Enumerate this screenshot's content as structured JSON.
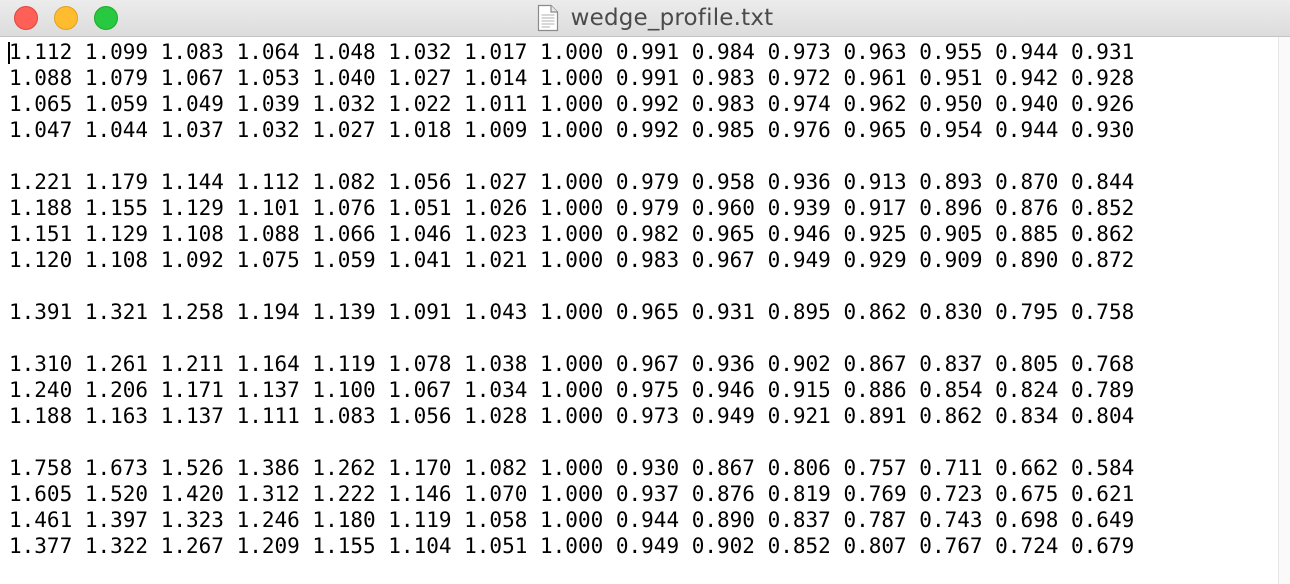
{
  "window": {
    "title": "wedge_profile.txt",
    "document_icon": "document-icon",
    "controls": {
      "close_color": "#fe5f57",
      "minimize_color": "#febc2e",
      "zoom_color": "#28c840"
    }
  },
  "editor": {
    "lines": [
      "1.112 1.099 1.083 1.064 1.048 1.032 1.017 1.000 0.991 0.984 0.973 0.963 0.955 0.944 0.931",
      "1.088 1.079 1.067 1.053 1.040 1.027 1.014 1.000 0.991 0.983 0.972 0.961 0.951 0.942 0.928",
      "1.065 1.059 1.049 1.039 1.032 1.022 1.011 1.000 0.992 0.983 0.974 0.962 0.950 0.940 0.926",
      "1.047 1.044 1.037 1.032 1.027 1.018 1.009 1.000 0.992 0.985 0.976 0.965 0.954 0.944 0.930",
      "",
      "1.221 1.179 1.144 1.112 1.082 1.056 1.027 1.000 0.979 0.958 0.936 0.913 0.893 0.870 0.844",
      "1.188 1.155 1.129 1.101 1.076 1.051 1.026 1.000 0.979 0.960 0.939 0.917 0.896 0.876 0.852",
      "1.151 1.129 1.108 1.088 1.066 1.046 1.023 1.000 0.982 0.965 0.946 0.925 0.905 0.885 0.862",
      "1.120 1.108 1.092 1.075 1.059 1.041 1.021 1.000 0.983 0.967 0.949 0.929 0.909 0.890 0.872",
      "",
      "1.391 1.321 1.258 1.194 1.139 1.091 1.043 1.000 0.965 0.931 0.895 0.862 0.830 0.795 0.758",
      "",
      "1.310 1.261 1.211 1.164 1.119 1.078 1.038 1.000 0.967 0.936 0.902 0.867 0.837 0.805 0.768",
      "1.240 1.206 1.171 1.137 1.100 1.067 1.034 1.000 0.975 0.946 0.915 0.886 0.854 0.824 0.789",
      "1.188 1.163 1.137 1.111 1.083 1.056 1.028 1.000 0.973 0.949 0.921 0.891 0.862 0.834 0.804",
      "",
      "1.758 1.673 1.526 1.386 1.262 1.170 1.082 1.000 0.930 0.867 0.806 0.757 0.711 0.662 0.584",
      "1.605 1.520 1.420 1.312 1.222 1.146 1.070 1.000 0.937 0.876 0.819 0.769 0.723 0.675 0.621",
      "1.461 1.397 1.323 1.246 1.180 1.119 1.058 1.000 0.944 0.890 0.837 0.787 0.743 0.698 0.649",
      "1.377 1.322 1.267 1.209 1.155 1.104 1.051 1.000 0.949 0.902 0.852 0.807 0.767 0.724 0.679"
    ]
  }
}
